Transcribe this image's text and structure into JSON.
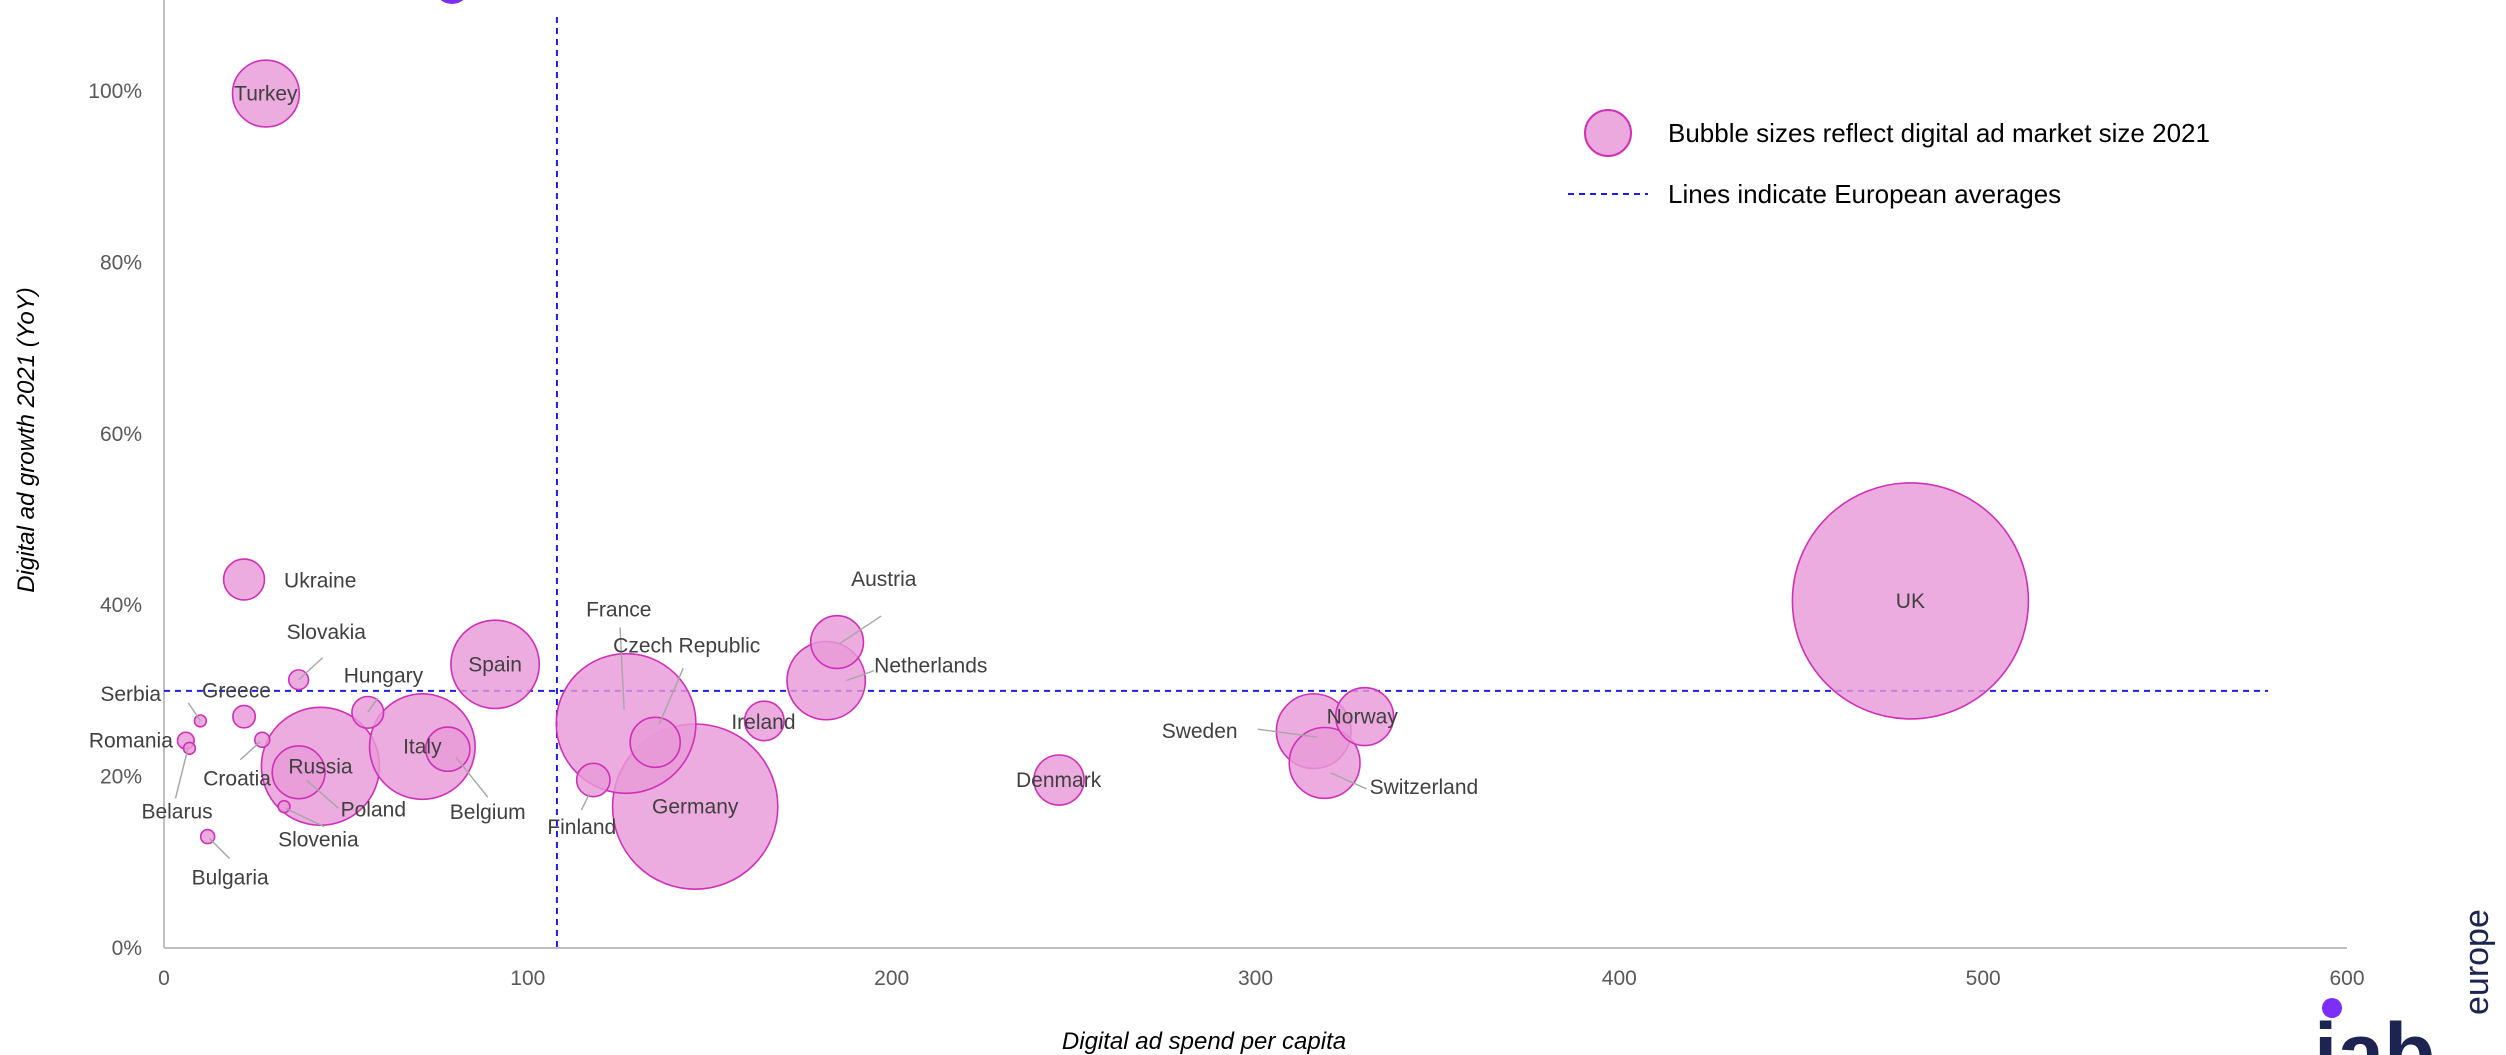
{
  "chart_data": {
    "type": "scatter",
    "subtype": "bubble",
    "xlabel": "Digital ad spend per capita",
    "ylabel": "Digital ad growth 2021 (YoY)",
    "xlim": [
      0,
      600
    ],
    "ylim": [
      0,
      1.0
    ],
    "x_ticks": [
      0,
      100,
      200,
      300,
      400,
      500,
      600
    ],
    "x_tick_labels": [
      "0",
      "100",
      "200",
      "300",
      "400",
      "500",
      "600"
    ],
    "y_ticks": [
      0,
      0.2,
      0.4,
      0.6,
      0.8,
      1.0
    ],
    "y_tick_labels": [
      "0%",
      "20%",
      "40%",
      "60%",
      "80%",
      "100%"
    ],
    "grid": false,
    "colors": {
      "bubble_fill": "#e89ad8",
      "bubble_stroke": "#d030b8",
      "average_line": "#1e1ee6",
      "axis": "#bfbfbf",
      "logo": "#1d2452",
      "logo_dot": "#7b2ff7"
    },
    "averages": {
      "x": 108,
      "y": 0.3
    },
    "legend": {
      "position": "top-right",
      "bubble_text": "Bubble sizes reflect digital ad market size 2021",
      "line_text": "Lines indicate European averages"
    },
    "points": [
      {
        "name": "UK",
        "x": 480,
        "y": 0.405,
        "size": 100
      },
      {
        "name": "Germany",
        "x": 146,
        "y": 0.165,
        "size": 49
      },
      {
        "name": "France",
        "x": 127,
        "y": 0.262,
        "size": 35
      },
      {
        "name": "Russia",
        "x": 43,
        "y": 0.212,
        "size": 25
      },
      {
        "name": "Italy",
        "x": 71,
        "y": 0.235,
        "size": 20
      },
      {
        "name": "Spain",
        "x": 91,
        "y": 0.331,
        "size": 14
      },
      {
        "name": "Netherlands",
        "x": 182,
        "y": 0.312,
        "size": 11
      },
      {
        "name": "Sweden",
        "x": 316,
        "y": 0.253,
        "size": 10
      },
      {
        "name": "Switzerland",
        "x": 319,
        "y": 0.216,
        "size": 9
      },
      {
        "name": "Poland",
        "x": 37,
        "y": 0.205,
        "size": 5
      },
      {
        "name": "Norway",
        "x": 330,
        "y": 0.27,
        "size": 6
      },
      {
        "name": "Turkey",
        "x": 28,
        "y": 0.997,
        "size": 8
      },
      {
        "name": "Austria",
        "x": 185,
        "y": 0.357,
        "size": 5
      },
      {
        "name": "Denmark",
        "x": 246,
        "y": 0.196,
        "size": 4.5
      },
      {
        "name": "Czech Republic",
        "x": 135,
        "y": 0.24,
        "size": 4.5
      },
      {
        "name": "Belgium",
        "x": 78,
        "y": 0.232,
        "size": 3.5
      },
      {
        "name": "Ireland",
        "x": 165,
        "y": 0.265,
        "size": 2.8
      },
      {
        "name": "Ukraine",
        "x": 22,
        "y": 0.43,
        "size": 3
      },
      {
        "name": "Finland",
        "x": 118,
        "y": 0.196,
        "size": 2
      },
      {
        "name": "Hungary",
        "x": 56,
        "y": 0.275,
        "size": 1.8
      },
      {
        "name": "Greece",
        "x": 22,
        "y": 0.27,
        "size": 0.9
      },
      {
        "name": "Slovakia",
        "x": 37,
        "y": 0.313,
        "size": 0.7
      },
      {
        "name": "Croatia",
        "x": 27,
        "y": 0.243,
        "size": 0.4
      },
      {
        "name": "Romania",
        "x": 6,
        "y": 0.242,
        "size": 0.5
      },
      {
        "name": "Serbia",
        "x": 10,
        "y": 0.265,
        "size": 0.25
      },
      {
        "name": "Belarus",
        "x": 7,
        "y": 0.233,
        "size": 0.25
      },
      {
        "name": "Slovenia",
        "x": 33,
        "y": 0.165,
        "size": 0.25
      },
      {
        "name": "Bulgaria",
        "x": 12,
        "y": 0.13,
        "size": 0.35
      }
    ]
  },
  "logo": {
    "text": "iab",
    "subtext": "europe"
  }
}
